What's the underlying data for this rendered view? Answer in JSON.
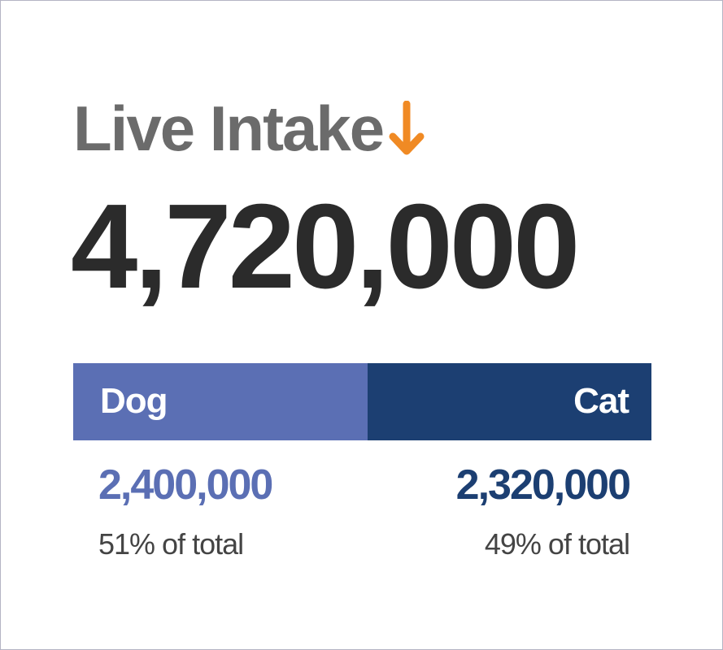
{
  "chart_data": {
    "type": "bar",
    "stacked": true,
    "orientation": "horizontal",
    "title": "Live Intake",
    "trend_icon": "arrow-down-icon",
    "trend_color": "#f08a24",
    "total": "4,720,000",
    "categories": [
      "Dog",
      "Cat"
    ],
    "values": [
      2400000,
      2320000
    ],
    "value_labels": [
      "2,400,000",
      "2,320,000"
    ],
    "percent_labels": [
      "51% of total",
      "49% of total"
    ],
    "colors": [
      "#5b6fb4",
      "#1c3f72"
    ]
  }
}
